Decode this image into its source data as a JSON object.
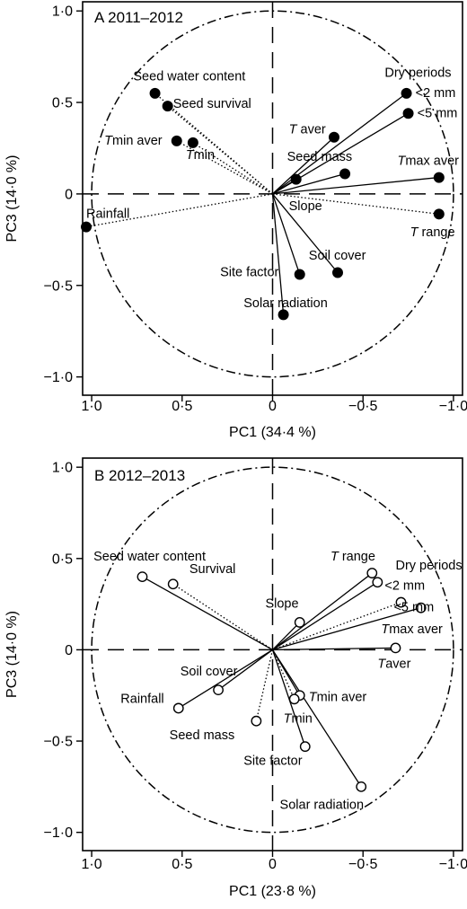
{
  "chart_data": [
    {
      "type": "scatter",
      "panel_label": "A",
      "title": "2011–2012",
      "xlabel": "PC1 (34·4 %)",
      "ylabel": "PC3 (14·0 %)",
      "xlim": [
        1.05,
        -1.05
      ],
      "ylim": [
        -1.1,
        1.05
      ],
      "x_reversed": true,
      "x_ticks": [
        {
          "v": 1.0,
          "label": "1·0"
        },
        {
          "v": 0.5,
          "label": "0·5"
        },
        {
          "v": 0.0,
          "label": "0"
        },
        {
          "v": -0.5,
          "label": "−0·5"
        },
        {
          "v": -1.0,
          "label": "−1·0"
        }
      ],
      "y_ticks": [
        {
          "v": 1.0,
          "label": "1·0"
        },
        {
          "v": 0.5,
          "label": "0·5"
        },
        {
          "v": 0.0,
          "label": "0"
        },
        {
          "v": -0.5,
          "label": "−0·5"
        },
        {
          "v": -1.0,
          "label": "−1·0"
        }
      ],
      "marker": "filled",
      "unit_circle": true,
      "points": [
        {
          "label": "Seed water content",
          "x": 0.65,
          "y": 0.55,
          "line": "dotted"
        },
        {
          "label": "Seed survival",
          "x": 0.58,
          "y": 0.48,
          "line": "dotted"
        },
        {
          "label": "Tmin aver",
          "x": 0.53,
          "y": 0.29,
          "line": "dotted"
        },
        {
          "label": "Tmin",
          "x": 0.44,
          "y": 0.28,
          "line": "dotted"
        },
        {
          "label": "Rainfall",
          "x": 1.03,
          "y": -0.18,
          "line": "dotted"
        },
        {
          "label": "Dry periods <2 mm",
          "x": -0.74,
          "y": 0.55,
          "line": "solid"
        },
        {
          "label": "<5 mm",
          "x": -0.75,
          "y": 0.44,
          "line": "solid"
        },
        {
          "label": "T aver",
          "x": -0.34,
          "y": 0.31,
          "line": "solid"
        },
        {
          "label": "Seed mass",
          "x": -0.4,
          "y": 0.11,
          "line": "solid"
        },
        {
          "label": "Slope",
          "x": -0.13,
          "y": 0.08,
          "line": "solid"
        },
        {
          "label": "Tmax aver",
          "x": -0.92,
          "y": 0.09,
          "line": "solid"
        },
        {
          "label": "T range",
          "x": -0.92,
          "y": -0.11,
          "line": "dotted"
        },
        {
          "label": "Soil cover",
          "x": -0.36,
          "y": -0.43,
          "line": "solid"
        },
        {
          "label": "Site factor",
          "x": -0.15,
          "y": -0.44,
          "line": "solid"
        },
        {
          "label": "Solar radiation",
          "x": -0.06,
          "y": -0.66,
          "line": "solid"
        }
      ],
      "point_labels": [
        {
          "text": "Seed water content",
          "x": 0.77,
          "y": 0.62,
          "anchor": "start"
        },
        {
          "text": "Seed survival",
          "x": 0.55,
          "y": 0.47,
          "anchor": "start"
        },
        {
          "text": "Tmin aver",
          "x": 0.93,
          "y": 0.27,
          "anchor": "start",
          "italic_first": true
        },
        {
          "text": "Tmin",
          "x": 0.48,
          "y": 0.19,
          "anchor": "start",
          "italic_first": true
        },
        {
          "text": "Rainfall",
          "x": 1.03,
          "y": -0.13,
          "anchor": "start"
        },
        {
          "text": "Dry periods",
          "x": -0.62,
          "y": 0.64,
          "anchor": "start"
        },
        {
          "text": "<2 mm",
          "x": -0.79,
          "y": 0.53,
          "anchor": "start"
        },
        {
          "text": "<5 mm",
          "x": -0.8,
          "y": 0.42,
          "anchor": "start"
        },
        {
          "text": "T aver",
          "x": -0.09,
          "y": 0.33,
          "anchor": "start",
          "italic_first": true
        },
        {
          "text": "Seed mass",
          "x": -0.08,
          "y": 0.18,
          "anchor": "start"
        },
        {
          "text": "Tmax aver",
          "x": -0.69,
          "y": 0.16,
          "anchor": "start",
          "italic_first": true
        },
        {
          "text": "Slope",
          "x": -0.09,
          "y": -0.09,
          "anchor": "start"
        },
        {
          "text": "T range",
          "x": -0.76,
          "y": -0.23,
          "anchor": "start",
          "italic_first": true
        },
        {
          "text": "Soil cover",
          "x": -0.2,
          "y": -0.36,
          "anchor": "start"
        },
        {
          "text": "Site factor",
          "x": 0.29,
          "y": -0.45,
          "anchor": "start"
        },
        {
          "text": "Solar radiation",
          "x": 0.16,
          "y": -0.62,
          "anchor": "start"
        }
      ]
    },
    {
      "type": "scatter",
      "panel_label": "B",
      "title": "2012–2013",
      "xlabel": "PC1 (23·8 %)",
      "ylabel": "PC3 (14·0 %)",
      "xlim": [
        1.05,
        -1.05
      ],
      "ylim": [
        -1.1,
        1.05
      ],
      "x_reversed": true,
      "x_ticks": [
        {
          "v": 1.0,
          "label": "1·0"
        },
        {
          "v": 0.5,
          "label": "0·5"
        },
        {
          "v": 0.0,
          "label": "0"
        },
        {
          "v": -0.5,
          "label": "−0·5"
        },
        {
          "v": -1.0,
          "label": "−1·0"
        }
      ],
      "y_ticks": [
        {
          "v": 1.0,
          "label": "1·0"
        },
        {
          "v": 0.5,
          "label": "0·5"
        },
        {
          "v": 0.0,
          "label": "0"
        },
        {
          "v": -0.5,
          "label": "−0·5"
        },
        {
          "v": -1.0,
          "label": "−1·0"
        }
      ],
      "marker": "open",
      "unit_circle": true,
      "points": [
        {
          "label": "Seed water content",
          "x": 0.72,
          "y": 0.4,
          "line": "solid"
        },
        {
          "label": "Survival",
          "x": 0.55,
          "y": 0.36,
          "line": "dotted"
        },
        {
          "label": "Soil cover",
          "x": 0.3,
          "y": -0.22,
          "line": "solid"
        },
        {
          "label": "Rainfall",
          "x": 0.52,
          "y": -0.32,
          "line": "solid"
        },
        {
          "label": "Seed mass",
          "x": 0.09,
          "y": -0.39,
          "line": "dotted"
        },
        {
          "label": "T range",
          "x": -0.55,
          "y": 0.42,
          "line": "solid"
        },
        {
          "label": "Dry periods <2 mm",
          "x": -0.58,
          "y": 0.37,
          "line": "solid"
        },
        {
          "label": "<5 mm",
          "x": -0.71,
          "y": 0.26,
          "line": "dotted"
        },
        {
          "label": "Tmax aver",
          "x": -0.82,
          "y": 0.23,
          "line": "solid"
        },
        {
          "label": "Slope",
          "x": -0.15,
          "y": 0.15,
          "line": "solid"
        },
        {
          "label": "Taver",
          "x": -0.68,
          "y": 0.01,
          "line": "solid"
        },
        {
          "label": "Tmin aver",
          "x": -0.15,
          "y": -0.25,
          "line": "solid"
        },
        {
          "label": "Tmin",
          "x": -0.12,
          "y": -0.27,
          "line": "dotted"
        },
        {
          "label": "Site factor",
          "x": -0.18,
          "y": -0.53,
          "line": "solid"
        },
        {
          "label": "Solar radiation",
          "x": -0.49,
          "y": -0.75,
          "line": "solid"
        }
      ],
      "point_labels": [
        {
          "text": "Seed water content",
          "x": 0.99,
          "y": 0.49,
          "anchor": "start"
        },
        {
          "text": "Survival",
          "x": 0.46,
          "y": 0.42,
          "anchor": "start"
        },
        {
          "text": "Soil cover",
          "x": 0.51,
          "y": -0.14,
          "anchor": "start"
        },
        {
          "text": "Rainfall",
          "x": 0.84,
          "y": -0.29,
          "anchor": "start"
        },
        {
          "text": "Seed mass",
          "x": 0.57,
          "y": -0.49,
          "anchor": "start"
        },
        {
          "text": "T range",
          "x": -0.32,
          "y": 0.49,
          "anchor": "start",
          "italic_first": true
        },
        {
          "text": "Dry periods",
          "x": -0.68,
          "y": 0.44,
          "anchor": "start"
        },
        {
          "text": "<2 mm",
          "x": -0.62,
          "y": 0.33,
          "anchor": "start"
        },
        {
          "text": "<5 mm",
          "x": -0.67,
          "y": 0.21,
          "anchor": "start"
        },
        {
          "text": "Slope",
          "x": 0.04,
          "y": 0.23,
          "anchor": "start"
        },
        {
          "text": "Tmax aver",
          "x": -0.6,
          "y": 0.09,
          "anchor": "start",
          "italic_first": true
        },
        {
          "text": "Taver",
          "x": -0.58,
          "y": -0.1,
          "anchor": "start",
          "italic_first": true
        },
        {
          "text": "Tmin aver",
          "x": -0.2,
          "y": -0.28,
          "anchor": "start",
          "italic_first": true
        },
        {
          "text": "Tmin",
          "x": -0.06,
          "y": -0.4,
          "anchor": "start",
          "italic_first": true
        },
        {
          "text": "Site factor",
          "x": 0.16,
          "y": -0.63,
          "anchor": "start"
        },
        {
          "text": "Solar radiation",
          "x": -0.04,
          "y": -0.87,
          "anchor": "start"
        }
      ]
    }
  ]
}
